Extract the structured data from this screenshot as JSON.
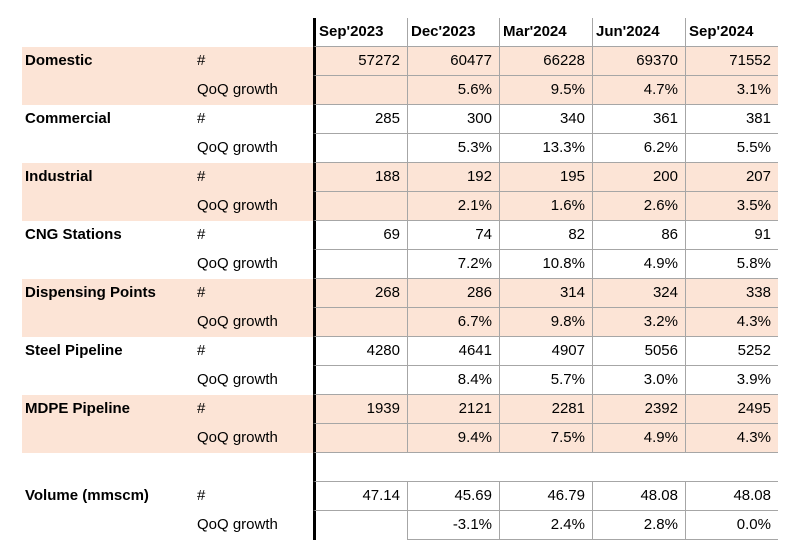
{
  "chart_data": {
    "type": "table",
    "columns": [
      "Sep'2023",
      "Dec'2023",
      "Mar'2024",
      "Jun'2024",
      "Sep'2024"
    ],
    "metric_labels": {
      "count": "#",
      "growth": "QoQ growth"
    },
    "groups": [
      {
        "label": "Domestic",
        "shaded": true,
        "gap_before": false,
        "count": [
          "57272",
          "60477",
          "66228",
          "69370",
          "71552"
        ],
        "growth": [
          "",
          "5.6%",
          "9.5%",
          "4.7%",
          "3.1%"
        ]
      },
      {
        "label": "Commercial",
        "shaded": false,
        "gap_before": false,
        "count": [
          "285",
          "300",
          "340",
          "361",
          "381"
        ],
        "growth": [
          "",
          "5.3%",
          "13.3%",
          "6.2%",
          "5.5%"
        ]
      },
      {
        "label": "Industrial",
        "shaded": true,
        "gap_before": false,
        "count": [
          "188",
          "192",
          "195",
          "200",
          "207"
        ],
        "growth": [
          "",
          "2.1%",
          "1.6%",
          "2.6%",
          "3.5%"
        ]
      },
      {
        "label": "CNG Stations",
        "shaded": false,
        "gap_before": false,
        "count": [
          "69",
          "74",
          "82",
          "86",
          "91"
        ],
        "growth": [
          "",
          "7.2%",
          "10.8%",
          "4.9%",
          "5.8%"
        ]
      },
      {
        "label": "Dispensing Points",
        "shaded": true,
        "gap_before": false,
        "count": [
          "268",
          "286",
          "314",
          "324",
          "338"
        ],
        "growth": [
          "",
          "6.7%",
          "9.8%",
          "3.2%",
          "4.3%"
        ]
      },
      {
        "label": "Steel Pipeline",
        "shaded": false,
        "gap_before": false,
        "count": [
          "4280",
          "4641",
          "4907",
          "5056",
          "5252"
        ],
        "growth": [
          "",
          "8.4%",
          "5.7%",
          "3.0%",
          "3.9%"
        ]
      },
      {
        "label": "MDPE Pipeline",
        "shaded": true,
        "gap_before": false,
        "count": [
          "1939",
          "2121",
          "2281",
          "2392",
          "2495"
        ],
        "growth": [
          "",
          "9.4%",
          "7.5%",
          "4.9%",
          "4.3%"
        ]
      },
      {
        "label": "Volume (mmscm)",
        "shaded": false,
        "gap_before": true,
        "count": [
          "47.14",
          "45.69",
          "46.79",
          "48.08",
          "48.08"
        ],
        "growth": [
          "",
          "-3.1%",
          "2.4%",
          "2.8%",
          "0.0%"
        ]
      }
    ]
  },
  "colors": {
    "background": "#ffffff",
    "shaded_row": "#fce4d6",
    "grid_line": "#a6a6a6",
    "section_divider": "#000000",
    "text": "#000000"
  }
}
